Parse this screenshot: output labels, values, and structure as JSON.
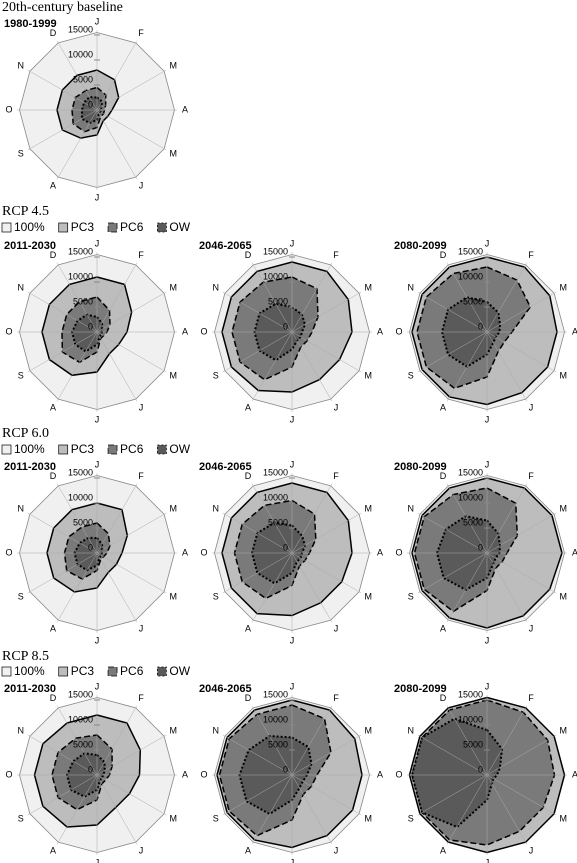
{
  "headings": [
    "20th-century baseline",
    "RCP 4.5",
    "RCP 6.0",
    "RCP 8.5"
  ],
  "chart_data": [
    {
      "type": "radar",
      "title": "1980-1999",
      "categories": [
        "J",
        "F",
        "M",
        "A",
        "M",
        "J",
        "J",
        "A",
        "S",
        "O",
        "N",
        "D"
      ],
      "rlim": [
        0,
        16000
      ],
      "rticks": [
        0,
        5000,
        10000,
        15000
      ],
      "series": [
        {
          "name": "100%",
          "color": "#f0f0f0",
          "values": [
            15500,
            15500,
            15500,
            15500,
            15500,
            15500,
            15500,
            15500,
            15500,
            15500,
            15500,
            15500
          ]
        },
        {
          "name": "PC3",
          "color": "#bdbdbd",
          "values": [
            8000,
            7000,
            5000,
            3000,
            2500,
            2500,
            5000,
            6500,
            8000,
            8000,
            8000,
            8000
          ]
        },
        {
          "name": "PC6",
          "color": "#7a7a7a",
          "values": [
            4500,
            3500,
            2000,
            1500,
            1500,
            1500,
            3500,
            5000,
            5500,
            5000,
            5000,
            4500
          ]
        },
        {
          "name": "OW",
          "color": "#5a5a5a",
          "values": [
            2500,
            2000,
            1000,
            800,
            800,
            800,
            2000,
            3000,
            3500,
            3000,
            3000,
            3000
          ]
        }
      ]
    },
    {
      "type": "radar",
      "title": "2011-2030",
      "categories": [
        "J",
        "F",
        "M",
        "A",
        "M",
        "J",
        "J",
        "A",
        "S",
        "O",
        "N",
        "D"
      ],
      "rlim": [
        0,
        16000
      ],
      "rticks": [
        0,
        5000,
        10000,
        15000
      ],
      "series": [
        {
          "name": "100%",
          "color": "#f0f0f0",
          "values": [
            15500,
            15500,
            15500,
            15500,
            15500,
            15500,
            15500,
            15500,
            15500,
            15500,
            15500,
            15500
          ]
        },
        {
          "name": "PC3",
          "color": "#bdbdbd",
          "values": [
            11000,
            11000,
            8000,
            6000,
            5000,
            5000,
            8000,
            10000,
            11000,
            11000,
            11000,
            11000
          ]
        },
        {
          "name": "PC6",
          "color": "#7a7a7a",
          "values": [
            7000,
            5000,
            3000,
            2000,
            1500,
            1500,
            4000,
            7000,
            8000,
            7000,
            7000,
            7000
          ]
        },
        {
          "name": "OW",
          "color": "#5a5a5a",
          "values": [
            3000,
            2000,
            1200,
            1000,
            1000,
            1000,
            2500,
            4500,
            5000,
            5000,
            4500,
            4000
          ]
        }
      ]
    },
    {
      "type": "radar",
      "title": "2046-2065",
      "categories": [
        "J",
        "F",
        "M",
        "A",
        "M",
        "J",
        "J",
        "A",
        "S",
        "O",
        "N",
        "D"
      ],
      "rlim": [
        0,
        16000
      ],
      "rticks": [
        0,
        5000,
        10000,
        15000
      ],
      "series": [
        {
          "name": "100%",
          "color": "#f0f0f0",
          "values": [
            15500,
            15500,
            15500,
            15500,
            15500,
            15500,
            15500,
            15500,
            15500,
            15500,
            15500,
            15500
          ]
        },
        {
          "name": "PC3",
          "color": "#bdbdbd",
          "values": [
            14000,
            14000,
            13000,
            12000,
            11000,
            11000,
            12000,
            13500,
            14000,
            14000,
            14000,
            14000
          ]
        },
        {
          "name": "PC6",
          "color": "#7a7a7a",
          "values": [
            11000,
            10000,
            6000,
            4000,
            3500,
            3500,
            7000,
            11000,
            12000,
            12000,
            12000,
            11500
          ]
        },
        {
          "name": "OW",
          "color": "#5a5a5a",
          "values": [
            5000,
            4000,
            3000,
            2000,
            2000,
            2000,
            3500,
            6500,
            7500,
            7500,
            7500,
            6500
          ]
        }
      ]
    },
    {
      "type": "radar",
      "title": "2080-2099",
      "categories": [
        "J",
        "F",
        "M",
        "A",
        "M",
        "J",
        "J",
        "A",
        "S",
        "O",
        "N",
        "D"
      ],
      "rlim": [
        0,
        16000
      ],
      "rticks": [
        0,
        5000,
        10000,
        15000
      ],
      "series": [
        {
          "name": "100%",
          "color": "#f0f0f0",
          "values": [
            15500,
            15500,
            15500,
            15500,
            15500,
            15500,
            15500,
            15500,
            15500,
            15500,
            15500,
            15500
          ]
        },
        {
          "name": "PC3",
          "color": "#bdbdbd",
          "values": [
            15000,
            15000,
            14500,
            14000,
            14000,
            14000,
            14500,
            15000,
            15000,
            15000,
            15000,
            15000
          ]
        },
        {
          "name": "PC6",
          "color": "#7a7a7a",
          "values": [
            13000,
            12000,
            10000,
            5000,
            4000,
            4500,
            9000,
            13000,
            14000,
            14000,
            14000,
            13500
          ]
        },
        {
          "name": "OW",
          "color": "#5a5a5a",
          "values": [
            6000,
            4500,
            3000,
            2500,
            2000,
            2500,
            4500,
            8000,
            9000,
            9000,
            9000,
            8000
          ]
        }
      ]
    },
    {
      "type": "radar",
      "title": "2011-2030",
      "categories": [
        "J",
        "F",
        "M",
        "A",
        "M",
        "J",
        "J",
        "A",
        "S",
        "O",
        "N",
        "D"
      ],
      "rlim": [
        0,
        16000
      ],
      "rticks": [
        0,
        5000,
        10000,
        15000
      ],
      "series": [
        {
          "name": "100%",
          "color": "#f0f0f0",
          "values": [
            15500,
            15500,
            15500,
            15500,
            15500,
            15500,
            15500,
            15500,
            15500,
            15500,
            15500,
            15500
          ]
        },
        {
          "name": "PC3",
          "color": "#bdbdbd",
          "values": [
            10000,
            10000,
            7000,
            5000,
            4500,
            4500,
            7000,
            9000,
            10000,
            10000,
            10000,
            10000
          ]
        },
        {
          "name": "PC6",
          "color": "#7a7a7a",
          "values": [
            6000,
            4500,
            3000,
            2000,
            1500,
            1500,
            3500,
            6000,
            7000,
            6500,
            6500,
            6000
          ]
        },
        {
          "name": "OW",
          "color": "#5a5a5a",
          "values": [
            3000,
            2000,
            1200,
            1000,
            1000,
            1000,
            2500,
            4000,
            4500,
            4500,
            4000,
            3500
          ]
        }
      ]
    },
    {
      "type": "radar",
      "title": "2046-2065",
      "categories": [
        "J",
        "F",
        "M",
        "A",
        "M",
        "J",
        "J",
        "A",
        "S",
        "O",
        "N",
        "D"
      ],
      "rlim": [
        0,
        16000
      ],
      "rticks": [
        0,
        5000,
        10000,
        15000
      ],
      "series": [
        {
          "name": "100%",
          "color": "#f0f0f0",
          "values": [
            15500,
            15500,
            15500,
            15500,
            15500,
            15500,
            15500,
            15500,
            15500,
            15500,
            15500,
            15500
          ]
        },
        {
          "name": "PC3",
          "color": "#bdbdbd",
          "values": [
            14000,
            14000,
            13000,
            12000,
            11500,
            11500,
            12500,
            14000,
            14000,
            14000,
            14000,
            14000
          ]
        },
        {
          "name": "PC6",
          "color": "#7a7a7a",
          "values": [
            10500,
            9000,
            5500,
            3500,
            3000,
            3000,
            6500,
            10500,
            11500,
            11500,
            11500,
            11000
          ]
        },
        {
          "name": "OW",
          "color": "#5a5a5a",
          "values": [
            5500,
            4000,
            3000,
            2000,
            2000,
            2000,
            4000,
            7000,
            8000,
            8000,
            8000,
            7000
          ]
        }
      ]
    },
    {
      "type": "radar",
      "title": "2080-2099",
      "categories": [
        "J",
        "F",
        "M",
        "A",
        "M",
        "J",
        "J",
        "A",
        "S",
        "O",
        "N",
        "D"
      ],
      "rlim": [
        0,
        16000
      ],
      "rticks": [
        0,
        5000,
        10000,
        15000
      ],
      "series": [
        {
          "name": "100%",
          "color": "#f0f0f0",
          "values": [
            15500,
            15500,
            15500,
            15500,
            15500,
            15500,
            15500,
            15500,
            15500,
            15500,
            15500,
            15500
          ]
        },
        {
          "name": "PC3",
          "color": "#bdbdbd",
          "values": [
            15000,
            15000,
            15000,
            15000,
            14500,
            14500,
            15000,
            15000,
            15000,
            15000,
            15000,
            15000
          ]
        },
        {
          "name": "PC6",
          "color": "#7a7a7a",
          "values": [
            13000,
            11500,
            7000,
            4000,
            3500,
            3500,
            7500,
            13500,
            14500,
            14500,
            14500,
            13500
          ]
        },
        {
          "name": "OW",
          "color": "#5a5a5a",
          "values": [
            6500,
            4500,
            3000,
            2500,
            2000,
            2500,
            5000,
            8500,
            10000,
            10000,
            9500,
            8500
          ]
        }
      ]
    },
    {
      "type": "radar",
      "title": "2011-2030",
      "categories": [
        "J",
        "F",
        "M",
        "A",
        "M",
        "J",
        "J",
        "A",
        "S",
        "O",
        "N",
        "D"
      ],
      "rlim": [
        0,
        16000
      ],
      "rticks": [
        0,
        5000,
        10000,
        15000
      ],
      "series": [
        {
          "name": "100%",
          "color": "#f0f0f0",
          "values": [
            15500,
            15500,
            15500,
            15500,
            15500,
            15500,
            15500,
            15500,
            15500,
            15500,
            15500,
            15500
          ]
        },
        {
          "name": "PC3",
          "color": "#bdbdbd",
          "values": [
            12000,
            12000,
            10000,
            8500,
            7500,
            7500,
            10000,
            12000,
            12500,
            12500,
            12500,
            12000
          ]
        },
        {
          "name": "PC6",
          "color": "#7a7a7a",
          "values": [
            8000,
            6000,
            3500,
            2500,
            2000,
            2000,
            5000,
            8000,
            9000,
            9000,
            9000,
            8500
          ]
        },
        {
          "name": "OW",
          "color": "#5a5a5a",
          "values": [
            4000,
            3000,
            1800,
            1200,
            1200,
            1200,
            3000,
            5000,
            6000,
            6000,
            5500,
            5000
          ]
        }
      ]
    },
    {
      "type": "radar",
      "title": "2046-2065",
      "categories": [
        "J",
        "F",
        "M",
        "A",
        "M",
        "J",
        "J",
        "A",
        "S",
        "O",
        "N",
        "D"
      ],
      "rlim": [
        0,
        16000
      ],
      "rticks": [
        0,
        5000,
        10000,
        15000
      ],
      "series": [
        {
          "name": "100%",
          "color": "#f0f0f0",
          "values": [
            15500,
            15500,
            15500,
            15500,
            15500,
            15500,
            15500,
            15500,
            15500,
            15500,
            15500,
            15500
          ]
        },
        {
          "name": "PC3",
          "color": "#bdbdbd",
          "values": [
            15000,
            15000,
            14500,
            14000,
            14000,
            14000,
            14500,
            15000,
            15000,
            15000,
            15000,
            15000
          ]
        },
        {
          "name": "PC6",
          "color": "#7a7a7a",
          "values": [
            14000,
            13000,
            9000,
            5000,
            4500,
            4500,
            9000,
            14000,
            14500,
            14500,
            14500,
            14000
          ]
        },
        {
          "name": "OW",
          "color": "#5a5a5a",
          "values": [
            7500,
            6500,
            4500,
            3000,
            2500,
            3000,
            5000,
            9000,
            10500,
            10500,
            10000,
            9000
          ]
        }
      ]
    },
    {
      "type": "radar",
      "title": "2080-2099",
      "categories": [
        "J",
        "F",
        "M",
        "A",
        "M",
        "J",
        "J",
        "A",
        "S",
        "O",
        "N",
        "D"
      ],
      "rlim": [
        0,
        16000
      ],
      "rticks": [
        0,
        5000,
        10000,
        15000
      ],
      "series": [
        {
          "name": "100%",
          "color": "#f0f0f0",
          "values": [
            15500,
            15500,
            15500,
            15500,
            15500,
            15500,
            15500,
            15500,
            15500,
            15500,
            15500,
            15500
          ]
        },
        {
          "name": "PC3",
          "color": "#bdbdbd",
          "values": [
            15500,
            15500,
            15500,
            15500,
            15500,
            15500,
            15500,
            15500,
            15500,
            15500,
            15500,
            15500
          ]
        },
        {
          "name": "PC6",
          "color": "#7a7a7a",
          "values": [
            15000,
            14500,
            14000,
            13500,
            13000,
            13000,
            14000,
            15000,
            15000,
            15000,
            15000,
            15000
          ]
        },
        {
          "name": "OW",
          "color": "#5a5a5a",
          "values": [
            9000,
            6000,
            3000,
            2000,
            1500,
            2000,
            5000,
            12000,
            15000,
            15000,
            15000,
            13000
          ]
        }
      ]
    }
  ]
}
